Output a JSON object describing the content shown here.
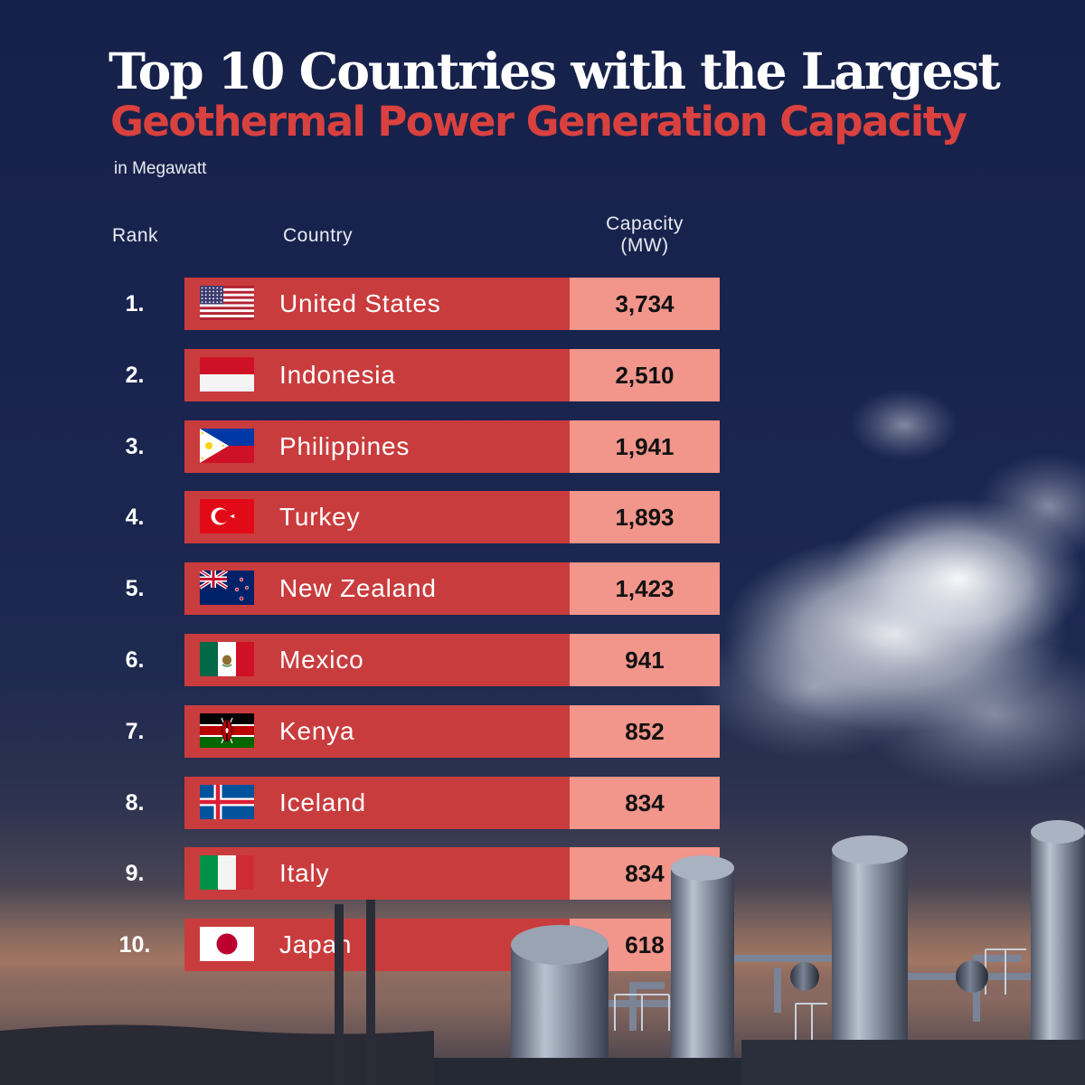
{
  "title_line1": "Top 10 Countries with the Largest",
  "title_line2": "Geothermal Power Generation Capacity",
  "subtitle": "in Megawatt",
  "headers": {
    "rank": "Rank",
    "country": "Country",
    "capacity_line1": "Capacity",
    "capacity_line2": "(MW)"
  },
  "colors": {
    "bar_red": "#c93c3d",
    "value_pink": "#f2958b",
    "title_red": "#d9413f",
    "background_navy": "#16214a"
  },
  "chart_data": {
    "type": "table",
    "title": "Top 10 Countries with the Largest Geothermal Power Generation Capacity",
    "subtitle": "in Megawatt",
    "columns": [
      "Rank",
      "Country",
      "Capacity (MW)"
    ],
    "rows": [
      {
        "rank": "1.",
        "country": "United States",
        "flag": "usa-flag-icon",
        "capacity": "3,734",
        "value": 3734
      },
      {
        "rank": "2.",
        "country": "Indonesia",
        "flag": "indonesia-flag-icon",
        "capacity": "2,510",
        "value": 2510
      },
      {
        "rank": "3.",
        "country": "Philippines",
        "flag": "philippines-flag-icon",
        "capacity": "1,941",
        "value": 1941
      },
      {
        "rank": "4.",
        "country": "Turkey",
        "flag": "turkey-flag-icon",
        "capacity": "1,893",
        "value": 1893
      },
      {
        "rank": "5.",
        "country": "New Zealand",
        "flag": "new-zealand-flag-icon",
        "capacity": "1,423",
        "value": 1423
      },
      {
        "rank": "6.",
        "country": "Mexico",
        "flag": "mexico-flag-icon",
        "capacity": "941",
        "value": 941
      },
      {
        "rank": "7.",
        "country": "Kenya",
        "flag": "kenya-flag-icon",
        "capacity": "852",
        "value": 852
      },
      {
        "rank": "8.",
        "country": "Iceland",
        "flag": "iceland-flag-icon",
        "capacity": "834",
        "value": 834
      },
      {
        "rank": "9.",
        "country": "Italy",
        "flag": "italy-flag-icon",
        "capacity": "834",
        "value": 834
      },
      {
        "rank": "10.",
        "country": "Japan",
        "flag": "japan-flag-icon",
        "capacity": "618",
        "value": 618
      }
    ]
  }
}
